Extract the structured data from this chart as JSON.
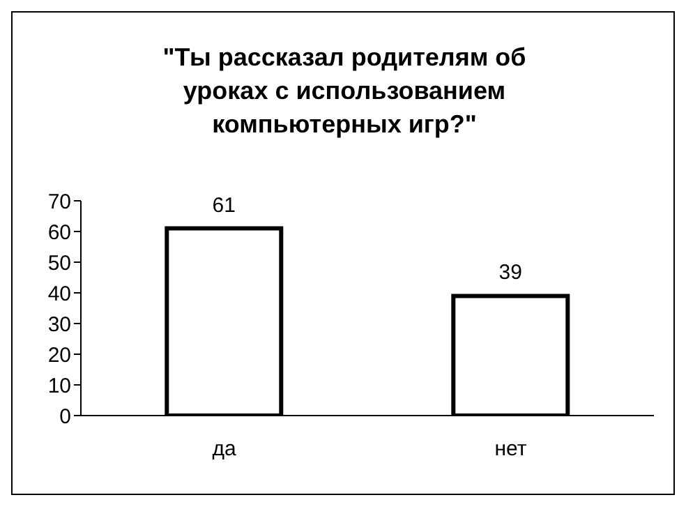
{
  "chart_data": {
    "type": "bar",
    "title": "\"Ты рассказал родителям об уроках с использованием компьютерных игр?\"",
    "categories": [
      "да",
      "нет"
    ],
    "values": [
      61,
      39
    ],
    "color": "#ffffff",
    "ylim": [
      0,
      70
    ],
    "yticks": [
      0,
      10,
      20,
      30,
      40,
      50,
      60,
      70
    ],
    "grid": false,
    "legend": false,
    "data_labels": true
  }
}
